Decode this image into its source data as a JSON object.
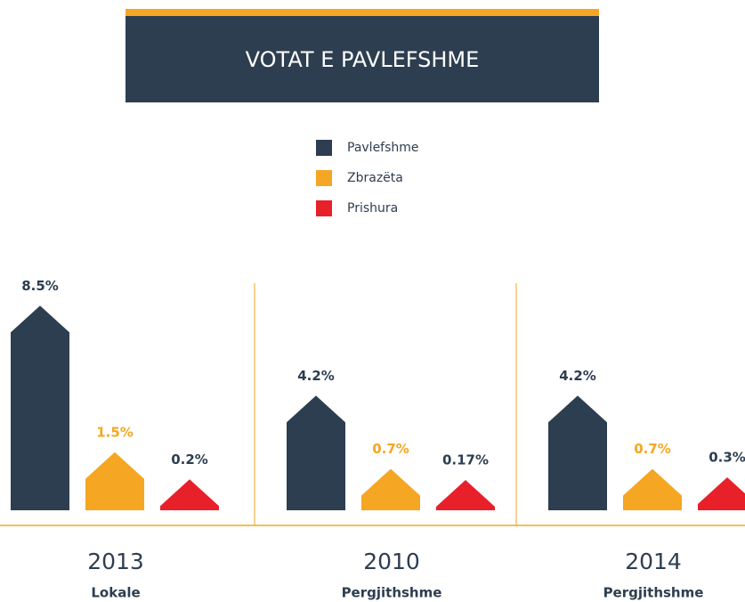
{
  "chart_data": {
    "type": "bar",
    "title": "VOTAT E PAVLEFSHME",
    "categories": [
      "2013",
      "2010",
      "2014"
    ],
    "subcategories": [
      "Lokale",
      "Pergjithshme",
      "Pergjithshme"
    ],
    "series": [
      {
        "name": "Pavlefshme",
        "color": "#2d3e50",
        "values": [
          8.5,
          4.2,
          4.2
        ],
        "value_labels": [
          "8.5%",
          "4.2%",
          "4.2%"
        ]
      },
      {
        "name": "Zbrazëta",
        "color": "#f5a623",
        "values": [
          1.5,
          0.7,
          0.7
        ],
        "value_labels": [
          "1.5%",
          "0.7%",
          "0.7%"
        ]
      },
      {
        "name": "Prishura",
        "color": "#e8202a",
        "values": [
          0.2,
          0.17,
          0.3
        ],
        "value_labels": [
          "0.2%",
          "0.17%",
          "0.3%"
        ]
      }
    ]
  }
}
